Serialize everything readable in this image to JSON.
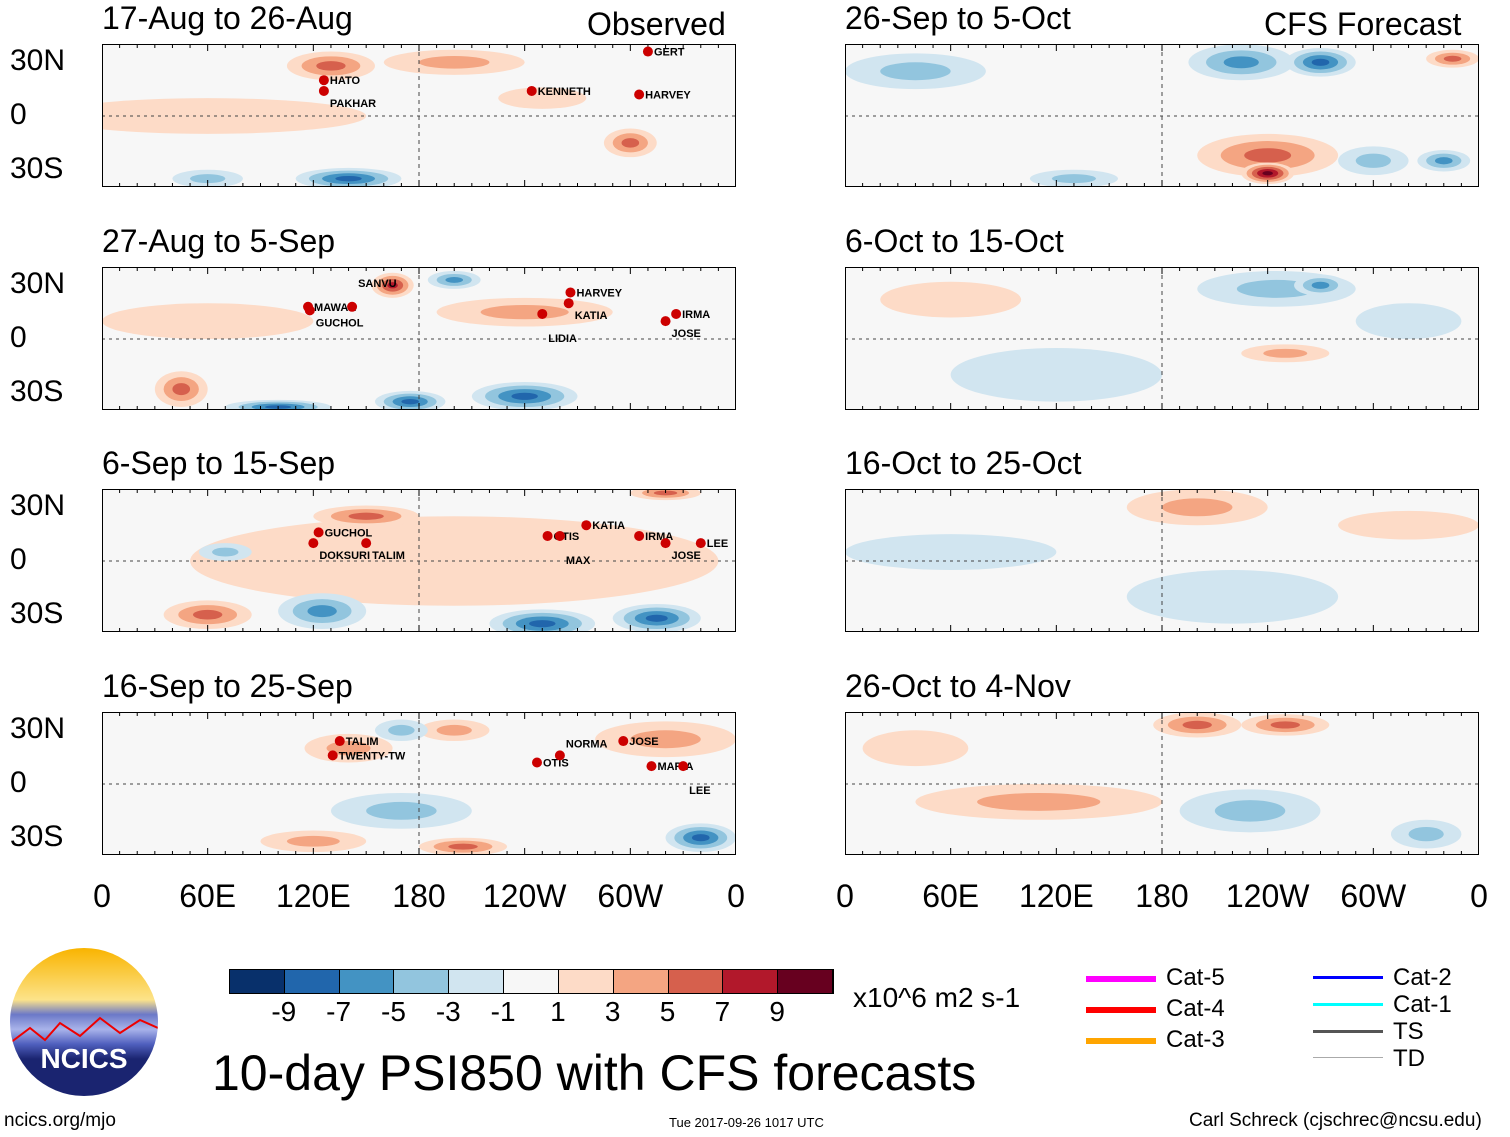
{
  "chart_data": {
    "type": "heatmap",
    "title": "10-day PSI850 with CFS forecasts",
    "units": "x10^6 m2 s-1",
    "colorbar": {
      "ticks": [
        "-9",
        "-7",
        "-5",
        "-3",
        "-1",
        "1",
        "3",
        "5",
        "7",
        "9"
      ],
      "colors": [
        "#08306b",
        "#2166ac",
        "#4393c3",
        "#92c5de",
        "#d1e5f0",
        "#f7f7f7",
        "#fddbc7",
        "#f4a582",
        "#d6604d",
        "#b2182b",
        "#67001f"
      ]
    },
    "lat_ticks": [
      "30N",
      "0",
      "30S"
    ],
    "lon_ticks": [
      "0",
      "60E",
      "120E",
      "180",
      "120W",
      "60W",
      "0"
    ],
    "column_labels": {
      "left": "Observed",
      "right": "CFS Forecast"
    },
    "panels": [
      {
        "title": "17-Aug to 26-Aug",
        "col": 0,
        "row": 0,
        "blobs": [
          [
            130,
            28,
            25,
            8,
            5
          ],
          [
            200,
            30,
            40,
            7,
            3
          ],
          [
            300,
            -15,
            15,
            8,
            5
          ],
          [
            140,
            -35,
            30,
            6,
            -7
          ],
          [
            60,
            -35,
            20,
            5,
            -3
          ],
          [
            60,
            0,
            90,
            10,
            1
          ],
          [
            250,
            10,
            25,
            6,
            1
          ]
        ],
        "storms": [
          [
            "HATO",
            126,
            20
          ],
          [
            "PAKHAR",
            126,
            14
          ],
          [
            "KENNETH",
            244,
            14
          ],
          [
            "GERT",
            310,
            36
          ],
          [
            "HARVEY",
            305,
            12
          ]
        ]
      },
      {
        "title": "27-Aug to 5-Sep",
        "col": 0,
        "row": 1,
        "blobs": [
          [
            165,
            30,
            12,
            7,
            7
          ],
          [
            200,
            33,
            15,
            5,
            -5
          ],
          [
            45,
            -28,
            15,
            10,
            5
          ],
          [
            240,
            -32,
            30,
            8,
            -7
          ],
          [
            175,
            -35,
            20,
            6,
            -7
          ],
          [
            100,
            -38,
            30,
            4,
            -7
          ],
          [
            240,
            15,
            50,
            8,
            3
          ],
          [
            60,
            10,
            60,
            10,
            1
          ]
        ],
        "storms": [
          [
            "MAWAR",
            117,
            18
          ],
          [
            "GUCHOL",
            118,
            16
          ],
          [
            "SANVU",
            142,
            18
          ],
          [
            "HARVEY",
            266,
            26
          ],
          [
            "KATIA",
            265,
            20
          ],
          [
            "LIDIA",
            250,
            14
          ],
          [
            "IRMA",
            326,
            14
          ],
          [
            "JOSE",
            320,
            10
          ]
        ]
      },
      {
        "title": "6-Sep to 15-Sep",
        "col": 0,
        "row": 2,
        "blobs": [
          [
            150,
            25,
            30,
            6,
            5
          ],
          [
            125,
            -28,
            25,
            10,
            -5
          ],
          [
            250,
            -35,
            30,
            8,
            -7
          ],
          [
            315,
            -32,
            25,
            8,
            -7
          ],
          [
            60,
            -30,
            25,
            8,
            5
          ],
          [
            320,
            38,
            20,
            4,
            5
          ],
          [
            70,
            5,
            15,
            5,
            -3
          ],
          [
            200,
            0,
            150,
            25,
            1
          ]
        ],
        "storms": [
          [
            "GUCHOL",
            123,
            16
          ],
          [
            "DOKSURI",
            120,
            10
          ],
          [
            "TALIM",
            150,
            10
          ],
          [
            "KATIA",
            275,
            20
          ],
          [
            "OTIS",
            253,
            14
          ],
          [
            "MAX",
            260,
            14
          ],
          [
            "IRMA",
            305,
            14
          ],
          [
            "JOSE",
            320,
            10
          ],
          [
            "LEE",
            340,
            10
          ]
        ]
      },
      {
        "title": "16-Sep to 25-Sep",
        "col": 0,
        "row": 3,
        "blobs": [
          [
            140,
            20,
            25,
            8,
            3
          ],
          [
            200,
            30,
            20,
            6,
            3
          ],
          [
            170,
            30,
            15,
            6,
            -3
          ],
          [
            205,
            -35,
            25,
            5,
            5
          ],
          [
            120,
            -32,
            30,
            6,
            3
          ],
          [
            340,
            -30,
            20,
            8,
            -7
          ],
          [
            170,
            -15,
            40,
            10,
            -3
          ],
          [
            320,
            25,
            40,
            10,
            3
          ]
        ],
        "storms": [
          [
            "TALIM",
            135,
            24
          ],
          [
            "TWENTY-TW",
            131,
            16
          ],
          [
            "OTIS",
            247,
            12
          ],
          [
            "NORMA",
            260,
            16
          ],
          [
            "JOSE",
            296,
            24
          ],
          [
            "MARIA",
            312,
            10
          ],
          [
            "LEE",
            330,
            10
          ]
        ]
      },
      {
        "title": "26-Sep to 5-Oct",
        "col": 1,
        "row": 0,
        "blobs": [
          [
            225,
            30,
            30,
            10,
            -5
          ],
          [
            270,
            30,
            20,
            8,
            -7
          ],
          [
            240,
            -22,
            40,
            12,
            5
          ],
          [
            240,
            -32,
            15,
            6,
            9
          ],
          [
            300,
            -25,
            20,
            8,
            -3
          ],
          [
            340,
            -25,
            15,
            6,
            -5
          ],
          [
            345,
            32,
            15,
            5,
            5
          ],
          [
            40,
            25,
            40,
            10,
            -3
          ],
          [
            130,
            -35,
            25,
            5,
            -3
          ]
        ],
        "storms": []
      },
      {
        "title": "6-Oct to 15-Oct",
        "col": 1,
        "row": 1,
        "blobs": [
          [
            245,
            28,
            45,
            10,
            -3
          ],
          [
            270,
            30,
            15,
            6,
            -5
          ],
          [
            60,
            22,
            40,
            10,
            1
          ],
          [
            250,
            -8,
            25,
            5,
            3
          ],
          [
            120,
            -20,
            60,
            15,
            -1
          ],
          [
            320,
            10,
            30,
            10,
            -1
          ]
        ],
        "storms": []
      },
      {
        "title": "16-Oct to 25-Oct",
        "col": 1,
        "row": 2,
        "blobs": [
          [
            200,
            30,
            40,
            10,
            3
          ],
          [
            220,
            -20,
            60,
            15,
            -1
          ],
          [
            60,
            5,
            60,
            10,
            -1
          ],
          [
            320,
            20,
            40,
            8,
            1
          ]
        ],
        "storms": []
      },
      {
        "title": "26-Oct to 4-Nov",
        "col": 1,
        "row": 3,
        "blobs": [
          [
            200,
            33,
            25,
            7,
            5
          ],
          [
            250,
            33,
            25,
            6,
            5
          ],
          [
            110,
            -10,
            70,
            10,
            3
          ],
          [
            230,
            -15,
            40,
            12,
            -3
          ],
          [
            330,
            -28,
            20,
            8,
            -3
          ],
          [
            40,
            20,
            30,
            10,
            1
          ]
        ],
        "storms": []
      }
    ]
  },
  "legend": {
    "items": [
      {
        "label": "Cat-5",
        "color": "#ff00ff"
      },
      {
        "label": "Cat-4",
        "color": "#ff0000"
      },
      {
        "label": "Cat-3",
        "color": "#ffa500"
      },
      {
        "label": "Cat-2",
        "color": "#0000ff"
      },
      {
        "label": "Cat-1",
        "color": "#00ffff"
      },
      {
        "label": "TS",
        "color": "#555555"
      },
      {
        "label": "TD",
        "color": "#aaaaaa"
      }
    ]
  },
  "logo": {
    "text": "NCICS"
  },
  "footer": {
    "left": "ncics.org/mjo",
    "center": "Tue 2017-09-26 1017 UTC",
    "right": "Carl Schreck (cjschrec@ncsu.edu)"
  }
}
